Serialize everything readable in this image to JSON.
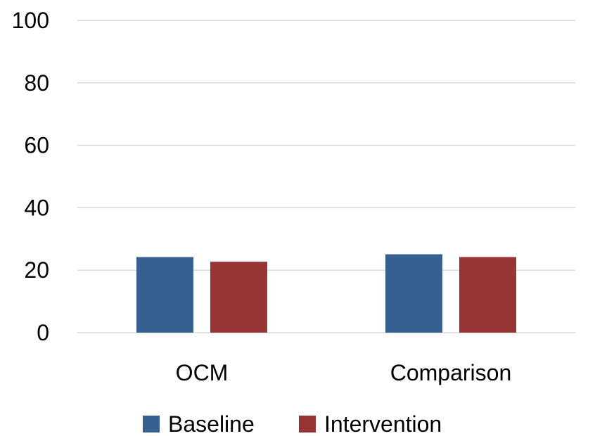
{
  "chart_data": {
    "type": "bar",
    "categories": [
      "OCM",
      "Comparison"
    ],
    "series": [
      {
        "name": "Baseline",
        "values": [
          24.2,
          25.1
        ],
        "color": "#35608f"
      },
      {
        "name": "Intervention",
        "values": [
          22.7,
          24.2
        ],
        "color": "#963534"
      }
    ],
    "ylim": [
      0,
      100
    ],
    "yticks": [
      0,
      20,
      40,
      60,
      80,
      100
    ],
    "grid": true,
    "legend_position": "bottom"
  }
}
